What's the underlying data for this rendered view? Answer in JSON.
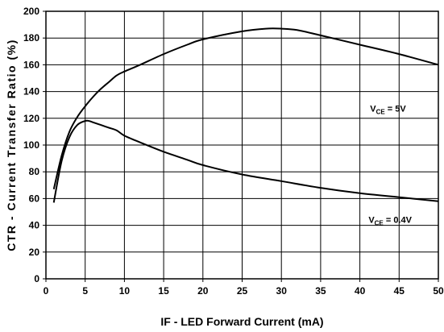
{
  "chart_data": {
    "type": "line",
    "xlabel": "IF - LED Forward Current (mA)",
    "ylabel": "CTR - Current Transfer Ratio (%)",
    "xlim": [
      0,
      50
    ],
    "ylim": [
      0,
      200
    ],
    "x_ticks": [
      "0",
      "5",
      "10",
      "15",
      "20",
      "25",
      "30",
      "35",
      "40",
      "45",
      "50"
    ],
    "y_ticks": [
      "0",
      "20",
      "40",
      "60",
      "80",
      "100",
      "120",
      "140",
      "160",
      "180",
      "200"
    ],
    "grid": true,
    "series": [
      {
        "name": "VCE = 5V",
        "label_main": "V",
        "label_sub": "CE",
        "label_rest": " = 5V",
        "x": [
          1,
          2,
          3,
          4,
          5,
          6,
          7,
          8,
          9,
          10,
          12,
          15,
          18,
          20,
          25,
          28,
          30,
          32,
          35,
          40,
          45,
          50
        ],
        "y": [
          67,
          92,
          110,
          121,
          129,
          136,
          142,
          147,
          152,
          155,
          160,
          168,
          175,
          179,
          185,
          187,
          187,
          186,
          182,
          175,
          168,
          160
        ]
      },
      {
        "name": "VCE = 0.4V",
        "label_main": "V",
        "label_sub": "CE",
        "label_rest": " = 0.4V",
        "x": [
          1,
          2,
          3,
          4,
          5,
          5.5,
          6,
          7,
          8,
          9,
          10,
          12,
          15,
          18,
          20,
          25,
          30,
          35,
          40,
          45,
          50
        ],
        "y": [
          57,
          88,
          106,
          115,
          118,
          118,
          117,
          115,
          113,
          111,
          107,
          102,
          95,
          89,
          85,
          78,
          73,
          68,
          64,
          61,
          58
        ]
      }
    ]
  }
}
